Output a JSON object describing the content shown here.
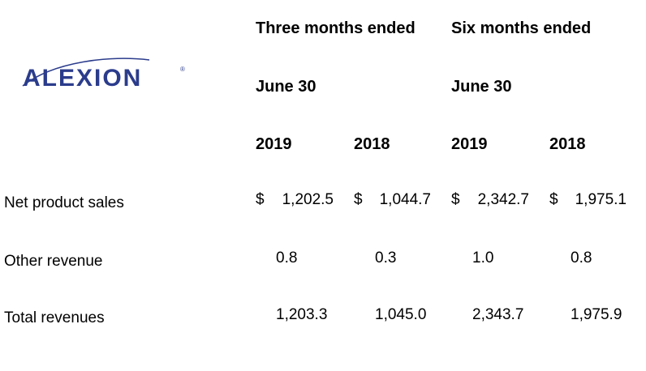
{
  "logo": {
    "text": "ALEXION",
    "trademark": "®",
    "color": "#2b3c8c"
  },
  "header": {
    "group1": "Three months ended",
    "group2": "Six months ended",
    "date1": "June 30",
    "date2": "June 30",
    "years": [
      "2019",
      "2018",
      "2019",
      "2018"
    ]
  },
  "rows": [
    {
      "label": "Net product sales",
      "currency": "$",
      "values": [
        "1,202.5",
        "1,044.7",
        "2,342.7",
        "1,975.1"
      ]
    },
    {
      "label": "Other revenue",
      "values": [
        "0.8",
        "0.3",
        "1.0",
        "0.8"
      ]
    },
    {
      "label": "Total revenues",
      "values": [
        "1,203.3",
        "1,045.0",
        "2,343.7",
        "1,975.9"
      ]
    }
  ]
}
